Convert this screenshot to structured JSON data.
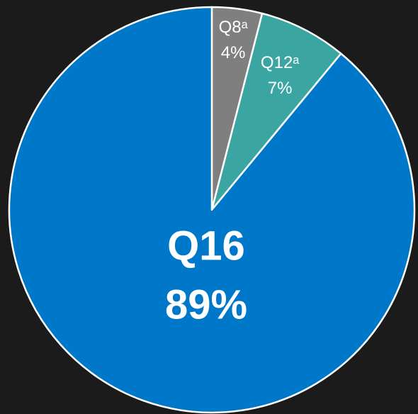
{
  "chart_data": {
    "type": "pie",
    "categories": [
      "Q8ᵃ",
      "Q12ᵃ",
      "Q16"
    ],
    "values": [
      4,
      7,
      89
    ],
    "value_labels": [
      "4%",
      "7%",
      "89%"
    ],
    "colors": [
      "#7f7f7f",
      "#3ba6a1",
      "#0078c9"
    ],
    "start_angle": 0,
    "direction": "clockwise"
  }
}
